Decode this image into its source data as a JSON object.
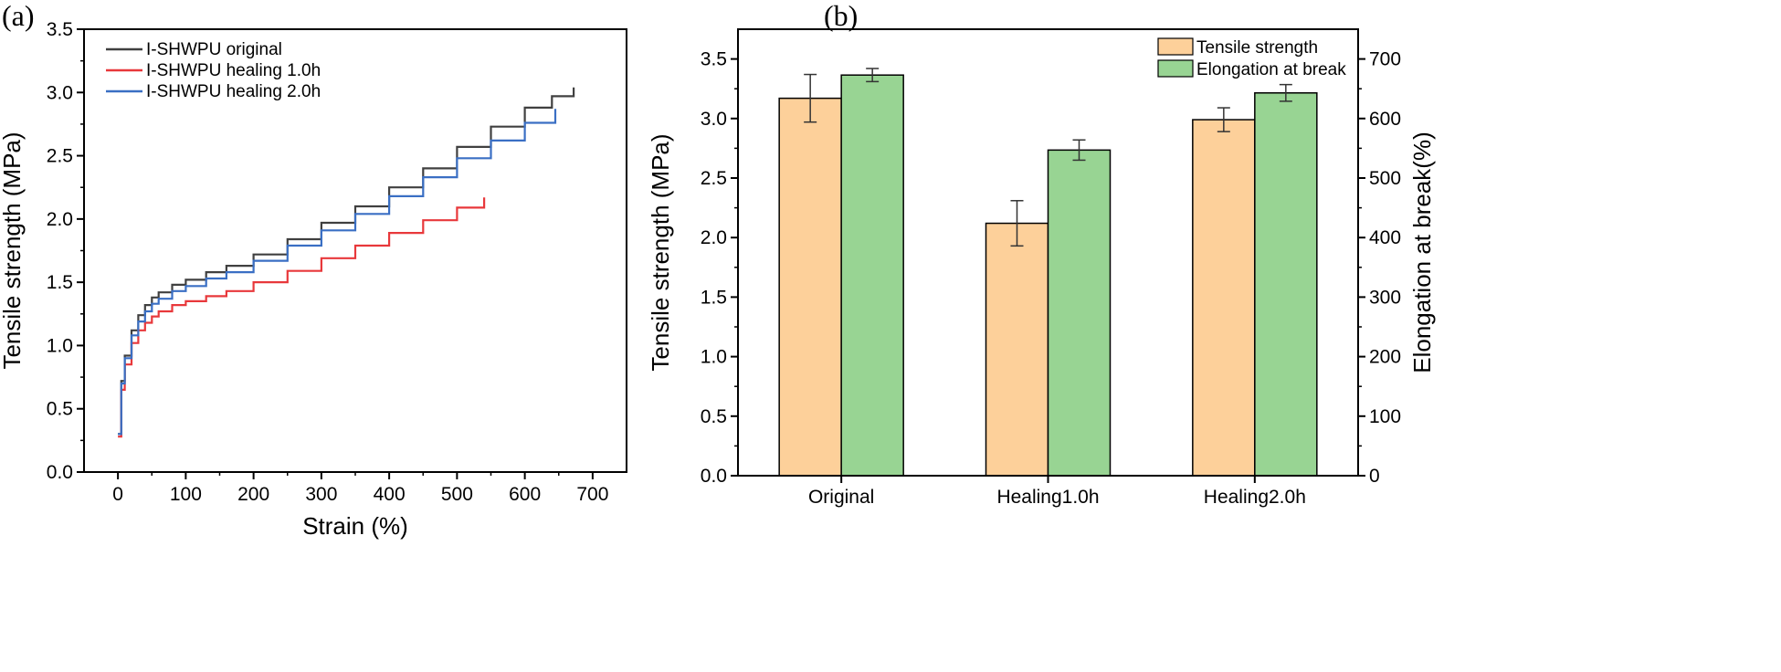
{
  "figure": {
    "panel_a_label": "(a)",
    "panel_b_label": "(b)"
  },
  "chart_data": [
    {
      "type": "line",
      "panel": "(a)",
      "title": "",
      "xlabel": "Strain (%)",
      "ylabel": "Tensile strength (MPa)",
      "xlim": [
        -50,
        750
      ],
      "ylim": [
        0,
        3.5
      ],
      "xticks": [
        0,
        100,
        200,
        300,
        400,
        500,
        600,
        700
      ],
      "yticks": [
        0.0,
        0.5,
        1.0,
        1.5,
        2.0,
        2.5,
        3.0,
        3.5
      ],
      "legend_position": "top-left",
      "series": [
        {
          "name": "I-SHWPU original",
          "color": "#404040",
          "x": [
            0,
            5,
            10,
            20,
            30,
            40,
            50,
            60,
            80,
            100,
            130,
            160,
            200,
            250,
            300,
            350,
            400,
            450,
            500,
            550,
            600,
            640,
            672
          ],
          "y": [
            0.3,
            0.72,
            0.92,
            1.12,
            1.24,
            1.32,
            1.38,
            1.42,
            1.48,
            1.52,
            1.58,
            1.63,
            1.72,
            1.84,
            1.97,
            2.1,
            2.25,
            2.4,
            2.57,
            2.73,
            2.88,
            2.97,
            3.04
          ]
        },
        {
          "name": "I-SHWPU healing 1.0h",
          "color": "#e8383b",
          "x": [
            0,
            5,
            10,
            20,
            30,
            40,
            50,
            60,
            80,
            100,
            130,
            160,
            200,
            250,
            300,
            350,
            400,
            450,
            500,
            540
          ],
          "y": [
            0.28,
            0.65,
            0.85,
            1.02,
            1.12,
            1.18,
            1.23,
            1.27,
            1.32,
            1.35,
            1.39,
            1.43,
            1.5,
            1.59,
            1.69,
            1.79,
            1.89,
            1.99,
            2.09,
            2.17
          ]
        },
        {
          "name": "I-SHWPU healing 2.0h",
          "color": "#3a6fc4",
          "x": [
            0,
            5,
            10,
            20,
            30,
            40,
            50,
            60,
            80,
            100,
            130,
            160,
            200,
            250,
            300,
            350,
            400,
            450,
            500,
            550,
            600,
            645
          ],
          "y": [
            0.3,
            0.7,
            0.9,
            1.08,
            1.19,
            1.27,
            1.33,
            1.37,
            1.43,
            1.47,
            1.53,
            1.58,
            1.67,
            1.79,
            1.91,
            2.04,
            2.18,
            2.33,
            2.48,
            2.62,
            2.76,
            2.87
          ]
        }
      ]
    },
    {
      "type": "bar",
      "panel": "(b)",
      "title": "",
      "xlabel": "",
      "ylabel": "Tensile strength (MPa)",
      "ylabel_right": "Elongation at break(%)",
      "categories": [
        "Original",
        "Healing1.0h",
        "Healing2.0h"
      ],
      "ylim": [
        0,
        3.75
      ],
      "ylim_right": [
        0,
        750
      ],
      "yticks": [
        0.0,
        0.5,
        1.0,
        1.5,
        2.0,
        2.5,
        3.0,
        3.5
      ],
      "yticks_right": [
        0,
        100,
        200,
        300,
        400,
        500,
        600,
        700
      ],
      "legend_position": "top-right",
      "series": [
        {
          "name": "Tensile strength",
          "axis": "left",
          "color": "#fdd09a",
          "values": [
            3.17,
            2.12,
            2.99
          ],
          "errors": [
            0.2,
            0.19,
            0.1
          ]
        },
        {
          "name": "Elongation at break",
          "axis": "right",
          "color": "#98d493",
          "values": [
            673,
            547,
            643
          ],
          "errors": [
            11,
            17,
            14
          ]
        }
      ]
    }
  ]
}
